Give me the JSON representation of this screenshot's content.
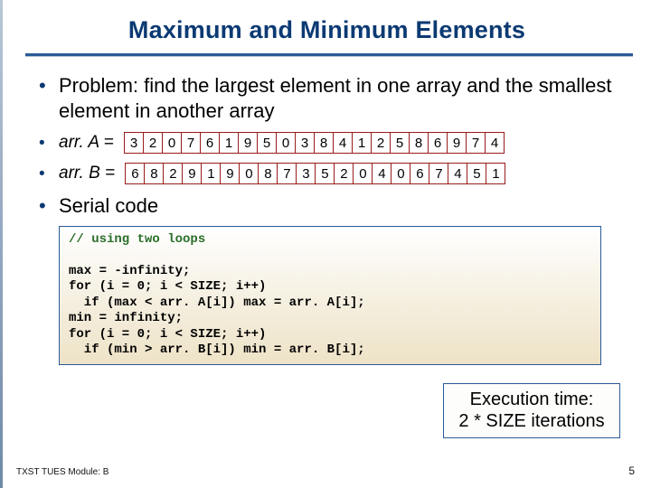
{
  "title": "Maximum and Minimum Elements",
  "colors": {
    "title_color": "#0b3a73",
    "rule_color": "#2a5a98",
    "array_border": "#9a1b1b",
    "code_bg_top": "#ffffff",
    "code_bg_bottom": "#eee3c7",
    "comment_color": "#2a6e2a",
    "left_stripe_top": "#b8c6d6",
    "left_stripe_bottom": "#6f89a8"
  },
  "bullets": {
    "problem": "Problem: find the largest element in one array and the smallest element in another array",
    "serial": "Serial code"
  },
  "arrays": {
    "a": {
      "label": "arr. A = ",
      "cells": [
        "3",
        "2",
        "0",
        "7",
        "6",
        "1",
        "9",
        "5",
        "0",
        "3",
        "8",
        "4",
        "1",
        "2",
        "5",
        "8",
        "6",
        "9",
        "7",
        "4"
      ]
    },
    "b": {
      "label": "arr. B = ",
      "cells": [
        "6",
        "8",
        "2",
        "9",
        "1",
        "9",
        "0",
        "8",
        "7",
        "3",
        "5",
        "2",
        "0",
        "4",
        "0",
        "6",
        "7",
        "4",
        "5",
        "1"
      ]
    }
  },
  "code": {
    "comment": "// using two loops",
    "body": "max = -infinity;\nfor (i = 0; i < SIZE; i++)\n  if (max < arr. A[i]) max = arr. A[i];\nmin = infinity;\nfor (i = 0; i < SIZE; i++)\n  if (min > arr. B[i]) min = arr. B[i];"
  },
  "exec": {
    "line1": "Execution time:",
    "line2": "2 * SIZE iterations"
  },
  "footer": "TXST TUES Module: B",
  "page": "5"
}
